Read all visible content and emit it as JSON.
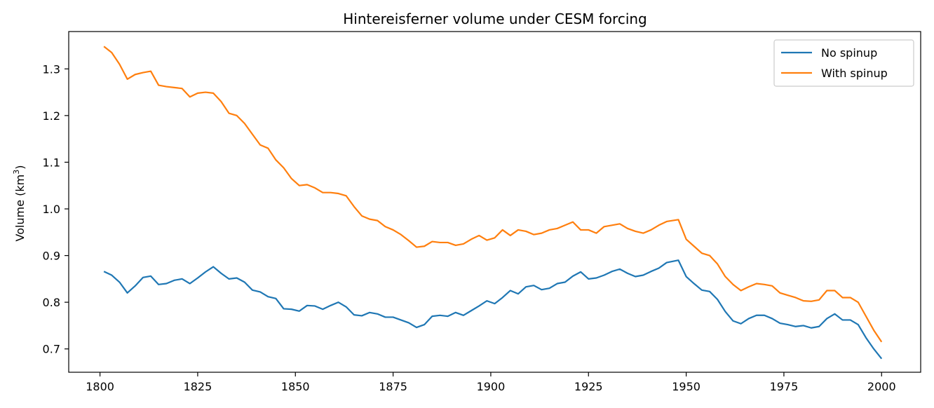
{
  "chart_data": {
    "type": "line",
    "title": "Hintereisferner volume under CESM forcing",
    "xlabel": "",
    "ylabel": "Volume (km",
    "ylabel_superscript": "3",
    "ylabel_suffix": ")",
    "xlim": [
      1792,
      2010
    ],
    "ylim": [
      0.65,
      1.38
    ],
    "xticks": [
      1800,
      1825,
      1850,
      1875,
      1900,
      1925,
      1950,
      1975,
      2000
    ],
    "yticks": [
      0.7,
      0.8,
      0.9,
      1.0,
      1.1,
      1.2,
      1.3
    ],
    "ytick_labels": [
      "0.7",
      "0.8",
      "0.9",
      "1.0",
      "1.1",
      "1.2",
      "1.3"
    ],
    "grid": false,
    "legend_position": "top-right",
    "series": [
      {
        "name": "No spinup",
        "color": "#1f77b4",
        "x": [
          1801,
          1803,
          1805,
          1807,
          1809,
          1811,
          1813,
          1815,
          1817,
          1819,
          1821,
          1823,
          1825,
          1827,
          1829,
          1831,
          1833,
          1835,
          1837,
          1839,
          1841,
          1843,
          1845,
          1847,
          1849,
          1851,
          1853,
          1855,
          1857,
          1859,
          1861,
          1863,
          1865,
          1867,
          1869,
          1871,
          1873,
          1875,
          1877,
          1879,
          1881,
          1883,
          1885,
          1887,
          1889,
          1891,
          1893,
          1895,
          1897,
          1899,
          1901,
          1903,
          1905,
          1907,
          1909,
          1911,
          1913,
          1915,
          1917,
          1919,
          1921,
          1923,
          1925,
          1927,
          1929,
          1931,
          1933,
          1935,
          1937,
          1939,
          1941,
          1943,
          1945,
          1948,
          1950,
          1952,
          1954,
          1956,
          1958,
          1960,
          1962,
          1964,
          1966,
          1968,
          1970,
          1972,
          1974,
          1976,
          1978,
          1980,
          1982,
          1984,
          1986,
          1988,
          1990,
          1992,
          1994,
          1996,
          1998,
          2000
        ],
        "values": [
          0.866,
          0.858,
          0.843,
          0.82,
          0.835,
          0.853,
          0.856,
          0.838,
          0.84,
          0.847,
          0.85,
          0.84,
          0.852,
          0.865,
          0.876,
          0.862,
          0.85,
          0.852,
          0.843,
          0.826,
          0.822,
          0.812,
          0.808,
          0.786,
          0.785,
          0.781,
          0.793,
          0.792,
          0.785,
          0.793,
          0.8,
          0.79,
          0.773,
          0.771,
          0.778,
          0.775,
          0.768,
          0.768,
          0.762,
          0.756,
          0.746,
          0.752,
          0.77,
          0.772,
          0.77,
          0.778,
          0.772,
          0.782,
          0.792,
          0.803,
          0.797,
          0.81,
          0.825,
          0.818,
          0.833,
          0.836,
          0.827,
          0.83,
          0.84,
          0.843,
          0.856,
          0.865,
          0.85,
          0.852,
          0.858,
          0.866,
          0.871,
          0.862,
          0.855,
          0.858,
          0.866,
          0.873,
          0.885,
          0.89,
          0.855,
          0.84,
          0.826,
          0.823,
          0.806,
          0.78,
          0.76,
          0.754,
          0.765,
          0.772,
          0.772,
          0.765,
          0.755,
          0.752,
          0.748,
          0.75,
          0.745,
          0.748,
          0.765,
          0.775,
          0.762,
          0.762,
          0.752,
          0.724,
          0.7,
          0.679
        ]
      },
      {
        "name": "With spinup",
        "color": "#ff7f0e",
        "x": [
          1801,
          1803,
          1805,
          1807,
          1809,
          1811,
          1813,
          1815,
          1817,
          1819,
          1821,
          1823,
          1825,
          1827,
          1829,
          1831,
          1833,
          1835,
          1837,
          1839,
          1841,
          1843,
          1845,
          1847,
          1849,
          1851,
          1853,
          1855,
          1857,
          1859,
          1861,
          1863,
          1865,
          1867,
          1869,
          1871,
          1873,
          1875,
          1877,
          1879,
          1881,
          1883,
          1885,
          1887,
          1889,
          1891,
          1893,
          1895,
          1897,
          1899,
          1901,
          1903,
          1905,
          1907,
          1909,
          1911,
          1913,
          1915,
          1917,
          1919,
          1921,
          1923,
          1925,
          1927,
          1929,
          1931,
          1933,
          1935,
          1937,
          1939,
          1941,
          1943,
          1945,
          1948,
          1950,
          1952,
          1954,
          1956,
          1958,
          1960,
          1962,
          1964,
          1966,
          1968,
          1970,
          1972,
          1974,
          1976,
          1978,
          1980,
          1982,
          1984,
          1986,
          1988,
          1990,
          1992,
          1994,
          1996,
          1998,
          2000
        ],
        "values": [
          1.348,
          1.335,
          1.31,
          1.278,
          1.288,
          1.292,
          1.295,
          1.265,
          1.262,
          1.26,
          1.258,
          1.24,
          1.248,
          1.25,
          1.248,
          1.23,
          1.205,
          1.2,
          1.183,
          1.16,
          1.137,
          1.13,
          1.105,
          1.088,
          1.065,
          1.05,
          1.052,
          1.045,
          1.035,
          1.035,
          1.033,
          1.028,
          1.005,
          0.985,
          0.978,
          0.975,
          0.962,
          0.955,
          0.945,
          0.932,
          0.918,
          0.92,
          0.93,
          0.928,
          0.928,
          0.922,
          0.925,
          0.935,
          0.943,
          0.933,
          0.938,
          0.955,
          0.943,
          0.955,
          0.952,
          0.945,
          0.948,
          0.955,
          0.958,
          0.965,
          0.972,
          0.955,
          0.955,
          0.948,
          0.962,
          0.965,
          0.968,
          0.958,
          0.952,
          0.948,
          0.955,
          0.965,
          0.973,
          0.977,
          0.935,
          0.92,
          0.905,
          0.9,
          0.882,
          0.855,
          0.838,
          0.825,
          0.833,
          0.84,
          0.838,
          0.835,
          0.82,
          0.815,
          0.81,
          0.803,
          0.802,
          0.805,
          0.825,
          0.825,
          0.81,
          0.81,
          0.8,
          0.77,
          0.74,
          0.715
        ]
      }
    ]
  }
}
